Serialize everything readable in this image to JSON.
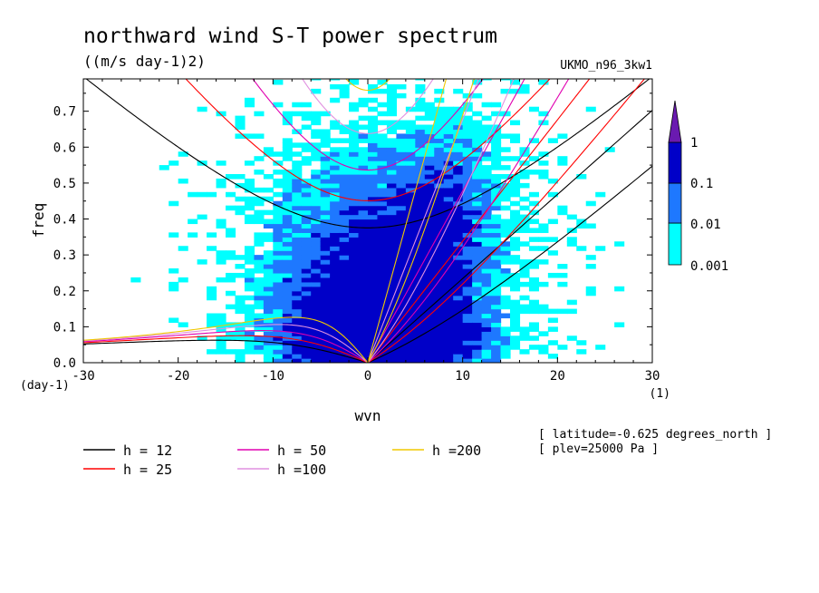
{
  "chart_data": {
    "type": "heatmap",
    "title": "northward wind S-T power spectrum",
    "subtitle": "((m/s day-1)2)",
    "dataset": "UKMO_n96_3kw1",
    "xlabel": "wvn",
    "xunit": "(1)",
    "ylabel": "freq",
    "yunit": "(day-1)",
    "xlim": [
      -30,
      30
    ],
    "ylim": [
      0,
      0.79
    ],
    "x_ticks": [
      -30,
      -20,
      -10,
      0,
      10,
      20,
      30
    ],
    "x_tick_labels": [
      "-30",
      "-20",
      "-10",
      "0",
      "10",
      "20",
      "30"
    ],
    "y_ticks": [
      0,
      0.1,
      0.2,
      0.3,
      0.4,
      0.5,
      0.6,
      0.7
    ],
    "y_tick_labels": [
      "0.0",
      "0.1",
      "0.2",
      "0.3",
      "0.4",
      "0.5",
      "0.6",
      "0.7"
    ],
    "colorbar": {
      "levels": [
        0.001,
        0.01,
        0.1,
        1
      ],
      "labels": [
        "0.001",
        "0.01",
        "0.1",
        "1"
      ],
      "colors": [
        "#00ffff",
        "#1e78ff",
        "#0000c8",
        "#6a1ab0"
      ]
    },
    "spectral_regions": [
      {
        "level": "0.001",
        "color": "#00ffff",
        "desc": "broad cloud around wvn 0, freq 0-0.75, extending to wvn ~ +-20"
      },
      {
        "level": "0.01",
        "color": "#1e78ff",
        "desc": "core near wvn -8..15, freq 0-0.65"
      },
      {
        "level": "0.1",
        "color": "#0000c8",
        "desc": "peak near wvn -5..12, freq 0-0.15 and eastward band wvn 5..10 freq 0.2-0.6"
      }
    ],
    "dispersion_curves": [
      {
        "h": 12,
        "label": "h = 12",
        "color": "#000000"
      },
      {
        "h": 25,
        "label": "h = 25",
        "color": "#ff0000"
      },
      {
        "h": 50,
        "label": "h = 50",
        "color": "#e000b0"
      },
      {
        "h": 100,
        "label": "h =100",
        "color": "#e090e0"
      },
      {
        "h": 200,
        "label": "h =200",
        "color": "#f0c800"
      }
    ],
    "annotations": [
      "[ latitude=-0.625 degrees_north ]",
      "[ plev=25000 Pa ]"
    ],
    "grid": false,
    "legend": "bottom"
  }
}
